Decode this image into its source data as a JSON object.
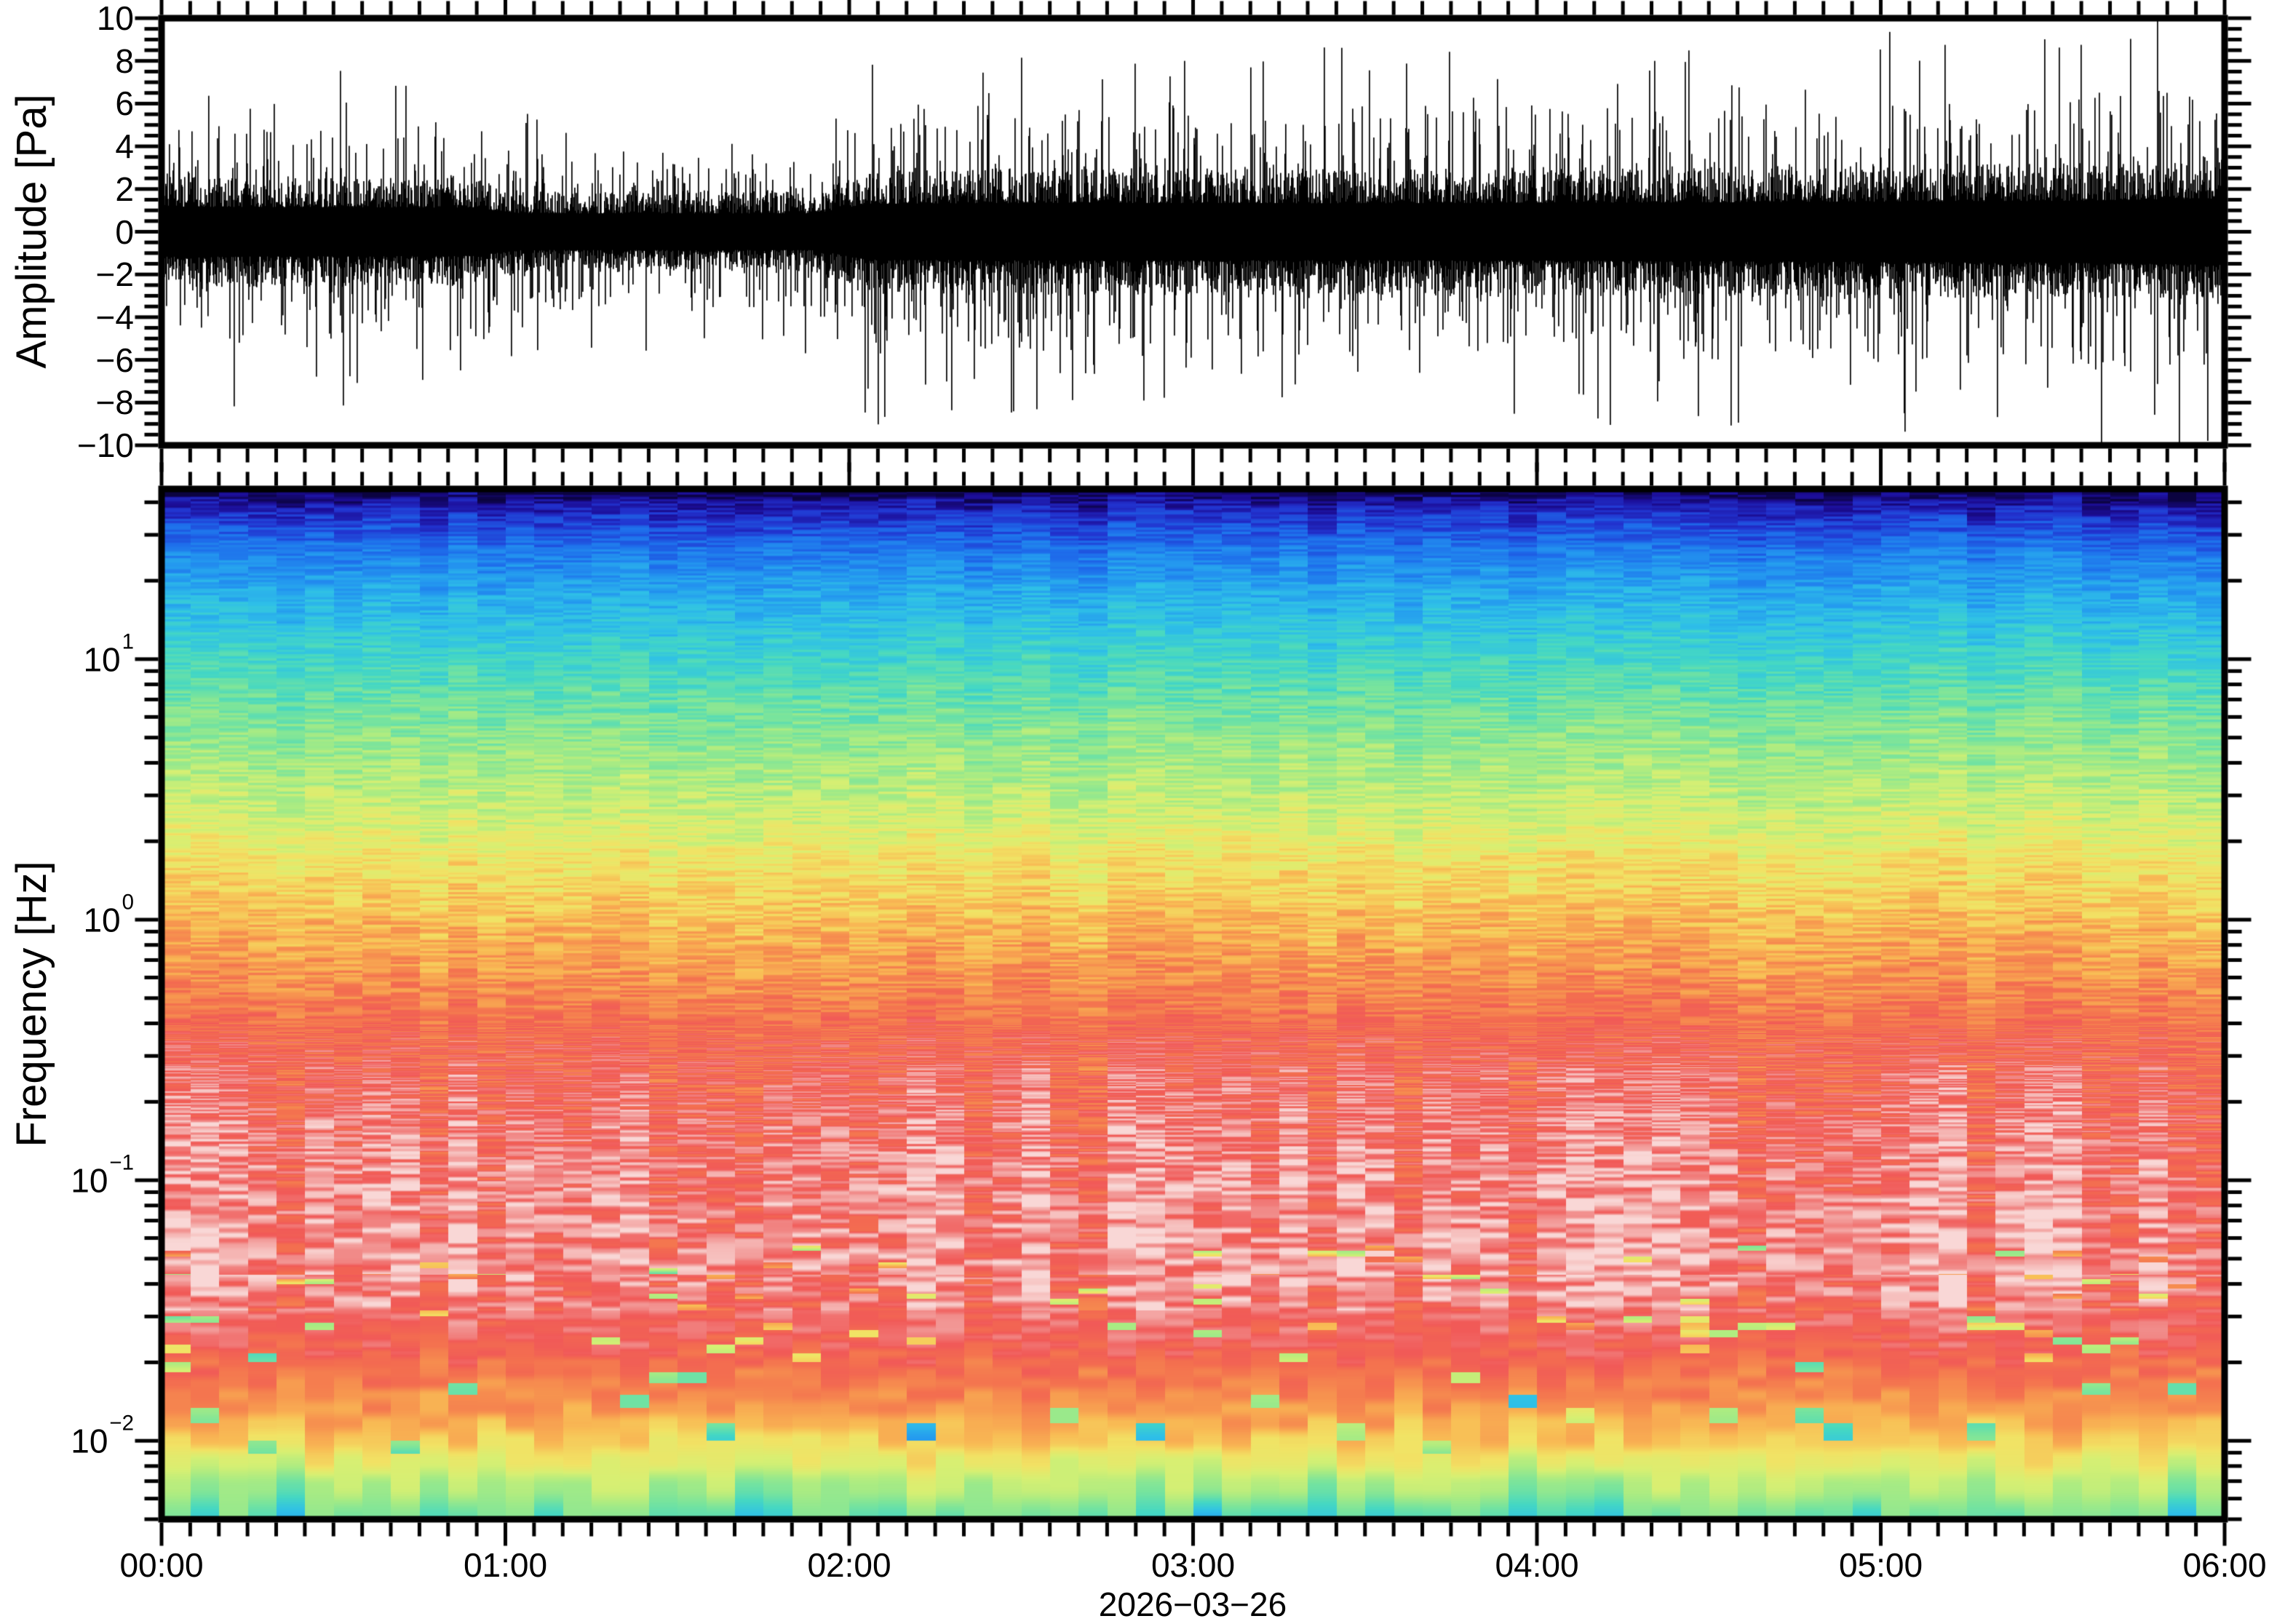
{
  "figure": {
    "kind": "waveform-and-spectrogram",
    "background": "#ffffff",
    "frame_color": "#000000"
  },
  "xaxis": {
    "tick_labels": [
      "00:00",
      "01:00",
      "02:00",
      "03:00",
      "04:00",
      "05:00",
      "06:00"
    ],
    "minor_interval_minutes": 5,
    "major_interval_minutes": 60,
    "span_hours": 6,
    "date_label": "2026−03−26"
  },
  "chart_data": [
    {
      "type": "line",
      "name": "pressure-waveform",
      "ylabel": "Amplitude [Pa]",
      "ylim": [
        -10,
        10
      ],
      "ytick_major": 2,
      "ytick_minor": 0.5,
      "ytick_labels": [
        "10",
        "8",
        "6",
        "4",
        "2",
        "0",
        "−2",
        "−4",
        "−6",
        "−8",
        "−10"
      ],
      "line_color": "#000000",
      "envelope_pa": [
        [
          0,
          2.6
        ],
        [
          0.9,
          2.5
        ],
        [
          1.05,
          1.9
        ],
        [
          1.9,
          1.9
        ],
        [
          2.05,
          2.9
        ],
        [
          2.6,
          3.0
        ],
        [
          3.5,
          2.95
        ],
        [
          4.5,
          3.05
        ],
        [
          5.5,
          3.2
        ],
        [
          6.0,
          3.45
        ]
      ],
      "clip_pa": 10,
      "texture": {
        "tall_spike_prob": 0.045,
        "extreme_spike_prob": 0.006,
        "grass_prob": 0.38
      }
    },
    {
      "type": "heatmap",
      "name": "spectrogram",
      "ylabel": "Frequency [Hz]",
      "yscale": "log",
      "freq_top_hz": 45,
      "freq_bottom_hz": 0.005,
      "ytick_exponents": [
        1,
        0,
        -1,
        -2
      ],
      "ytick_labels": [
        "10¹",
        "10⁰",
        "10⁻¹",
        "10⁻²"
      ],
      "ytick_sup": [
        "1",
        "0",
        "−1",
        "−2"
      ],
      "time_bin_minutes": 5,
      "freq_bin_hz": 0.0016667,
      "colormap": [
        [
          0.0,
          "#0b0340"
        ],
        [
          0.045,
          "#1c0d96"
        ],
        [
          0.1,
          "#2233cf"
        ],
        [
          0.17,
          "#1e6ceb"
        ],
        [
          0.24,
          "#2498f0"
        ],
        [
          0.31,
          "#2fc0e8"
        ],
        [
          0.38,
          "#45d8c4"
        ],
        [
          0.45,
          "#78e49e"
        ],
        [
          0.52,
          "#abec83"
        ],
        [
          0.58,
          "#d8f073"
        ],
        [
          0.64,
          "#f2e365"
        ],
        [
          0.7,
          "#f9bc55"
        ],
        [
          0.76,
          "#f7934f"
        ],
        [
          0.82,
          "#f4714f"
        ],
        [
          0.88,
          "#f15a58"
        ],
        [
          0.93,
          "#f28f8d"
        ],
        [
          0.97,
          "#f6b9b7"
        ],
        [
          1.0,
          "#f9d7d6"
        ]
      ],
      "psd_profile": [
        [
          1.6532,
          0.0
        ],
        [
          1.575,
          0.08
        ],
        [
          1.407,
          0.2
        ],
        [
          1.234,
          0.28
        ],
        [
          1.0,
          0.37
        ],
        [
          0.737,
          0.47
        ],
        [
          0.458,
          0.55
        ],
        [
          0.262,
          0.62
        ],
        [
          0.0,
          0.7
        ],
        [
          -0.24,
          0.77
        ],
        [
          -0.464,
          0.85
        ],
        [
          -0.799,
          0.9
        ],
        [
          -1.017,
          0.92
        ],
        [
          -1.358,
          0.93
        ],
        [
          -1.609,
          0.87
        ],
        [
          -1.777,
          0.79
        ],
        [
          -1.916,
          0.71
        ],
        [
          -2.028,
          0.63
        ],
        [
          -2.14,
          0.54
        ],
        [
          -2.223,
          0.47
        ],
        [
          -2.301,
          0.44
        ]
      ]
    }
  ]
}
